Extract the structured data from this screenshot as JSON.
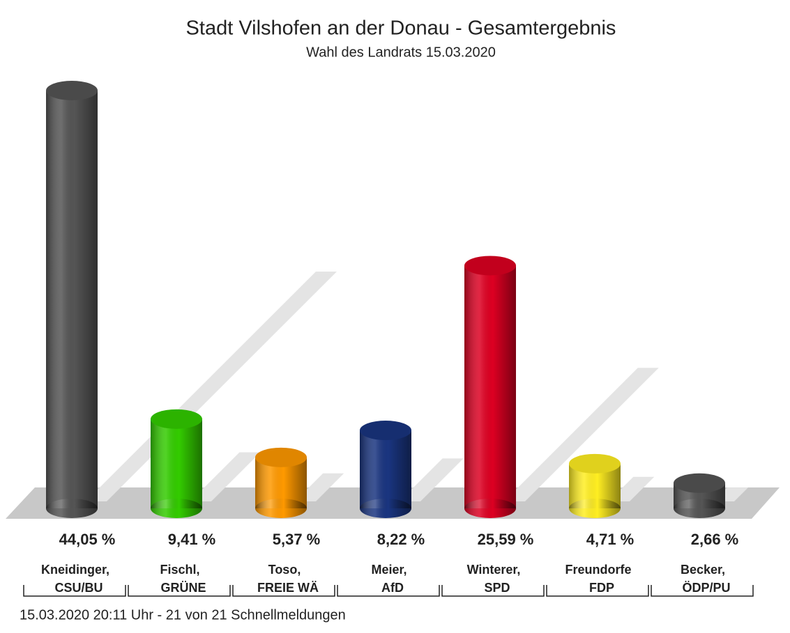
{
  "chart_data": {
    "type": "bar",
    "title": "Stadt Vilshofen an der Donau - Gesamtergebnis",
    "subtitle": "Wahl des Landrats 15.03.2020",
    "categories": [
      [
        "Kneidinger,",
        "CSU/BU"
      ],
      [
        "Fischl,",
        "GRÜNE"
      ],
      [
        "Toso,",
        "FREIE WÄ"
      ],
      [
        "Meier,",
        "AfD"
      ],
      [
        "Winterer,",
        "SPD"
      ],
      [
        "Freundorfe",
        "FDP"
      ],
      [
        "Becker,",
        "ÖDP/PU"
      ]
    ],
    "values": [
      44.05,
      9.41,
      5.37,
      8.22,
      25.59,
      4.71,
      2.66
    ],
    "value_labels": [
      "44,05 %",
      "9,41 %",
      "5,37 %",
      "8,22 %",
      "25,59 %",
      "4,71 %",
      "2,66 %"
    ],
    "colors": [
      "#555555",
      "#33cc00",
      "#ff9900",
      "#1a3580",
      "#dd0022",
      "#ffee22",
      "#555555"
    ],
    "footer": "15.03.2020 20:11 Uhr - 21 von 21 Schnellmeldungen"
  }
}
